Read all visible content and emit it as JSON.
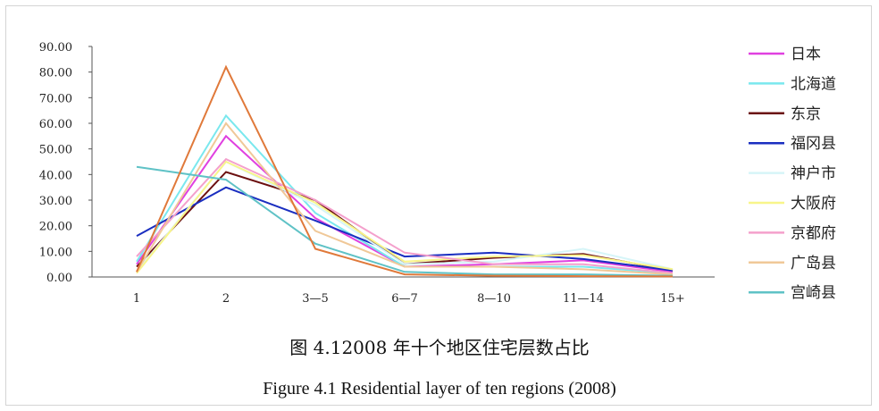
{
  "chart_data": {
    "type": "line",
    "categories": [
      "1",
      "2",
      "3—5",
      "6—7",
      "8—10",
      "11—14",
      "15+"
    ],
    "ylim": [
      0,
      90
    ],
    "yticks": [
      "0.00",
      "10.00",
      "20.00",
      "30.00",
      "40.00",
      "50.00",
      "60.00",
      "70.00",
      "80.00",
      "90.00"
    ],
    "legend_position": "right",
    "series": [
      {
        "name": "日本",
        "color": "#e040e0",
        "values": [
          5.0,
          55.0,
          23.0,
          4.0,
          5.0,
          6.5,
          2.0
        ]
      },
      {
        "name": "北海道",
        "color": "#7ae8ee",
        "values": [
          6.0,
          63.0,
          25.0,
          4.0,
          4.0,
          4.0,
          1.5
        ]
      },
      {
        "name": "东京",
        "color": "#6b0f0f",
        "values": [
          4.0,
          41.0,
          30.0,
          5.0,
          7.5,
          9.0,
          2.5
        ]
      },
      {
        "name": "福冈县",
        "color": "#1a2ec0",
        "values": [
          16.0,
          35.0,
          22.0,
          8.0,
          9.5,
          7.0,
          2.5
        ]
      },
      {
        "name": "神户市",
        "color": "#d6f5f8",
        "values": [
          2.0,
          45.0,
          28.0,
          5.0,
          6.0,
          11.0,
          3.0
        ]
      },
      {
        "name": "大阪府",
        "color": "#f8f58a",
        "values": [
          1.5,
          45.0,
          29.0,
          6.0,
          8.0,
          8.5,
          3.0
        ]
      },
      {
        "name": "京都府",
        "color": "#f4a0cc",
        "values": [
          8.0,
          46.0,
          30.0,
          9.5,
          5.0,
          5.0,
          1.5
        ]
      },
      {
        "name": "广岛县",
        "color": "#f0c898",
        "values": [
          2.0,
          60.0,
          18.0,
          4.0,
          4.0,
          3.0,
          1.0
        ]
      },
      {
        "name": "宫崎县",
        "color": "#5fc2c6",
        "values": [
          43.0,
          38.0,
          13.0,
          2.0,
          1.0,
          1.0,
          0.5
        ]
      },
      {
        "name": "",
        "color": "#e0793a",
        "values": [
          2.0,
          82.0,
          11.0,
          1.0,
          0.5,
          0.3,
          0.2
        ]
      }
    ]
  },
  "caption_cn": "图 4.12008 年十个地区住宅层数占比",
  "caption_en": "Figure 4.1 Residential layer of ten regions (2008)"
}
